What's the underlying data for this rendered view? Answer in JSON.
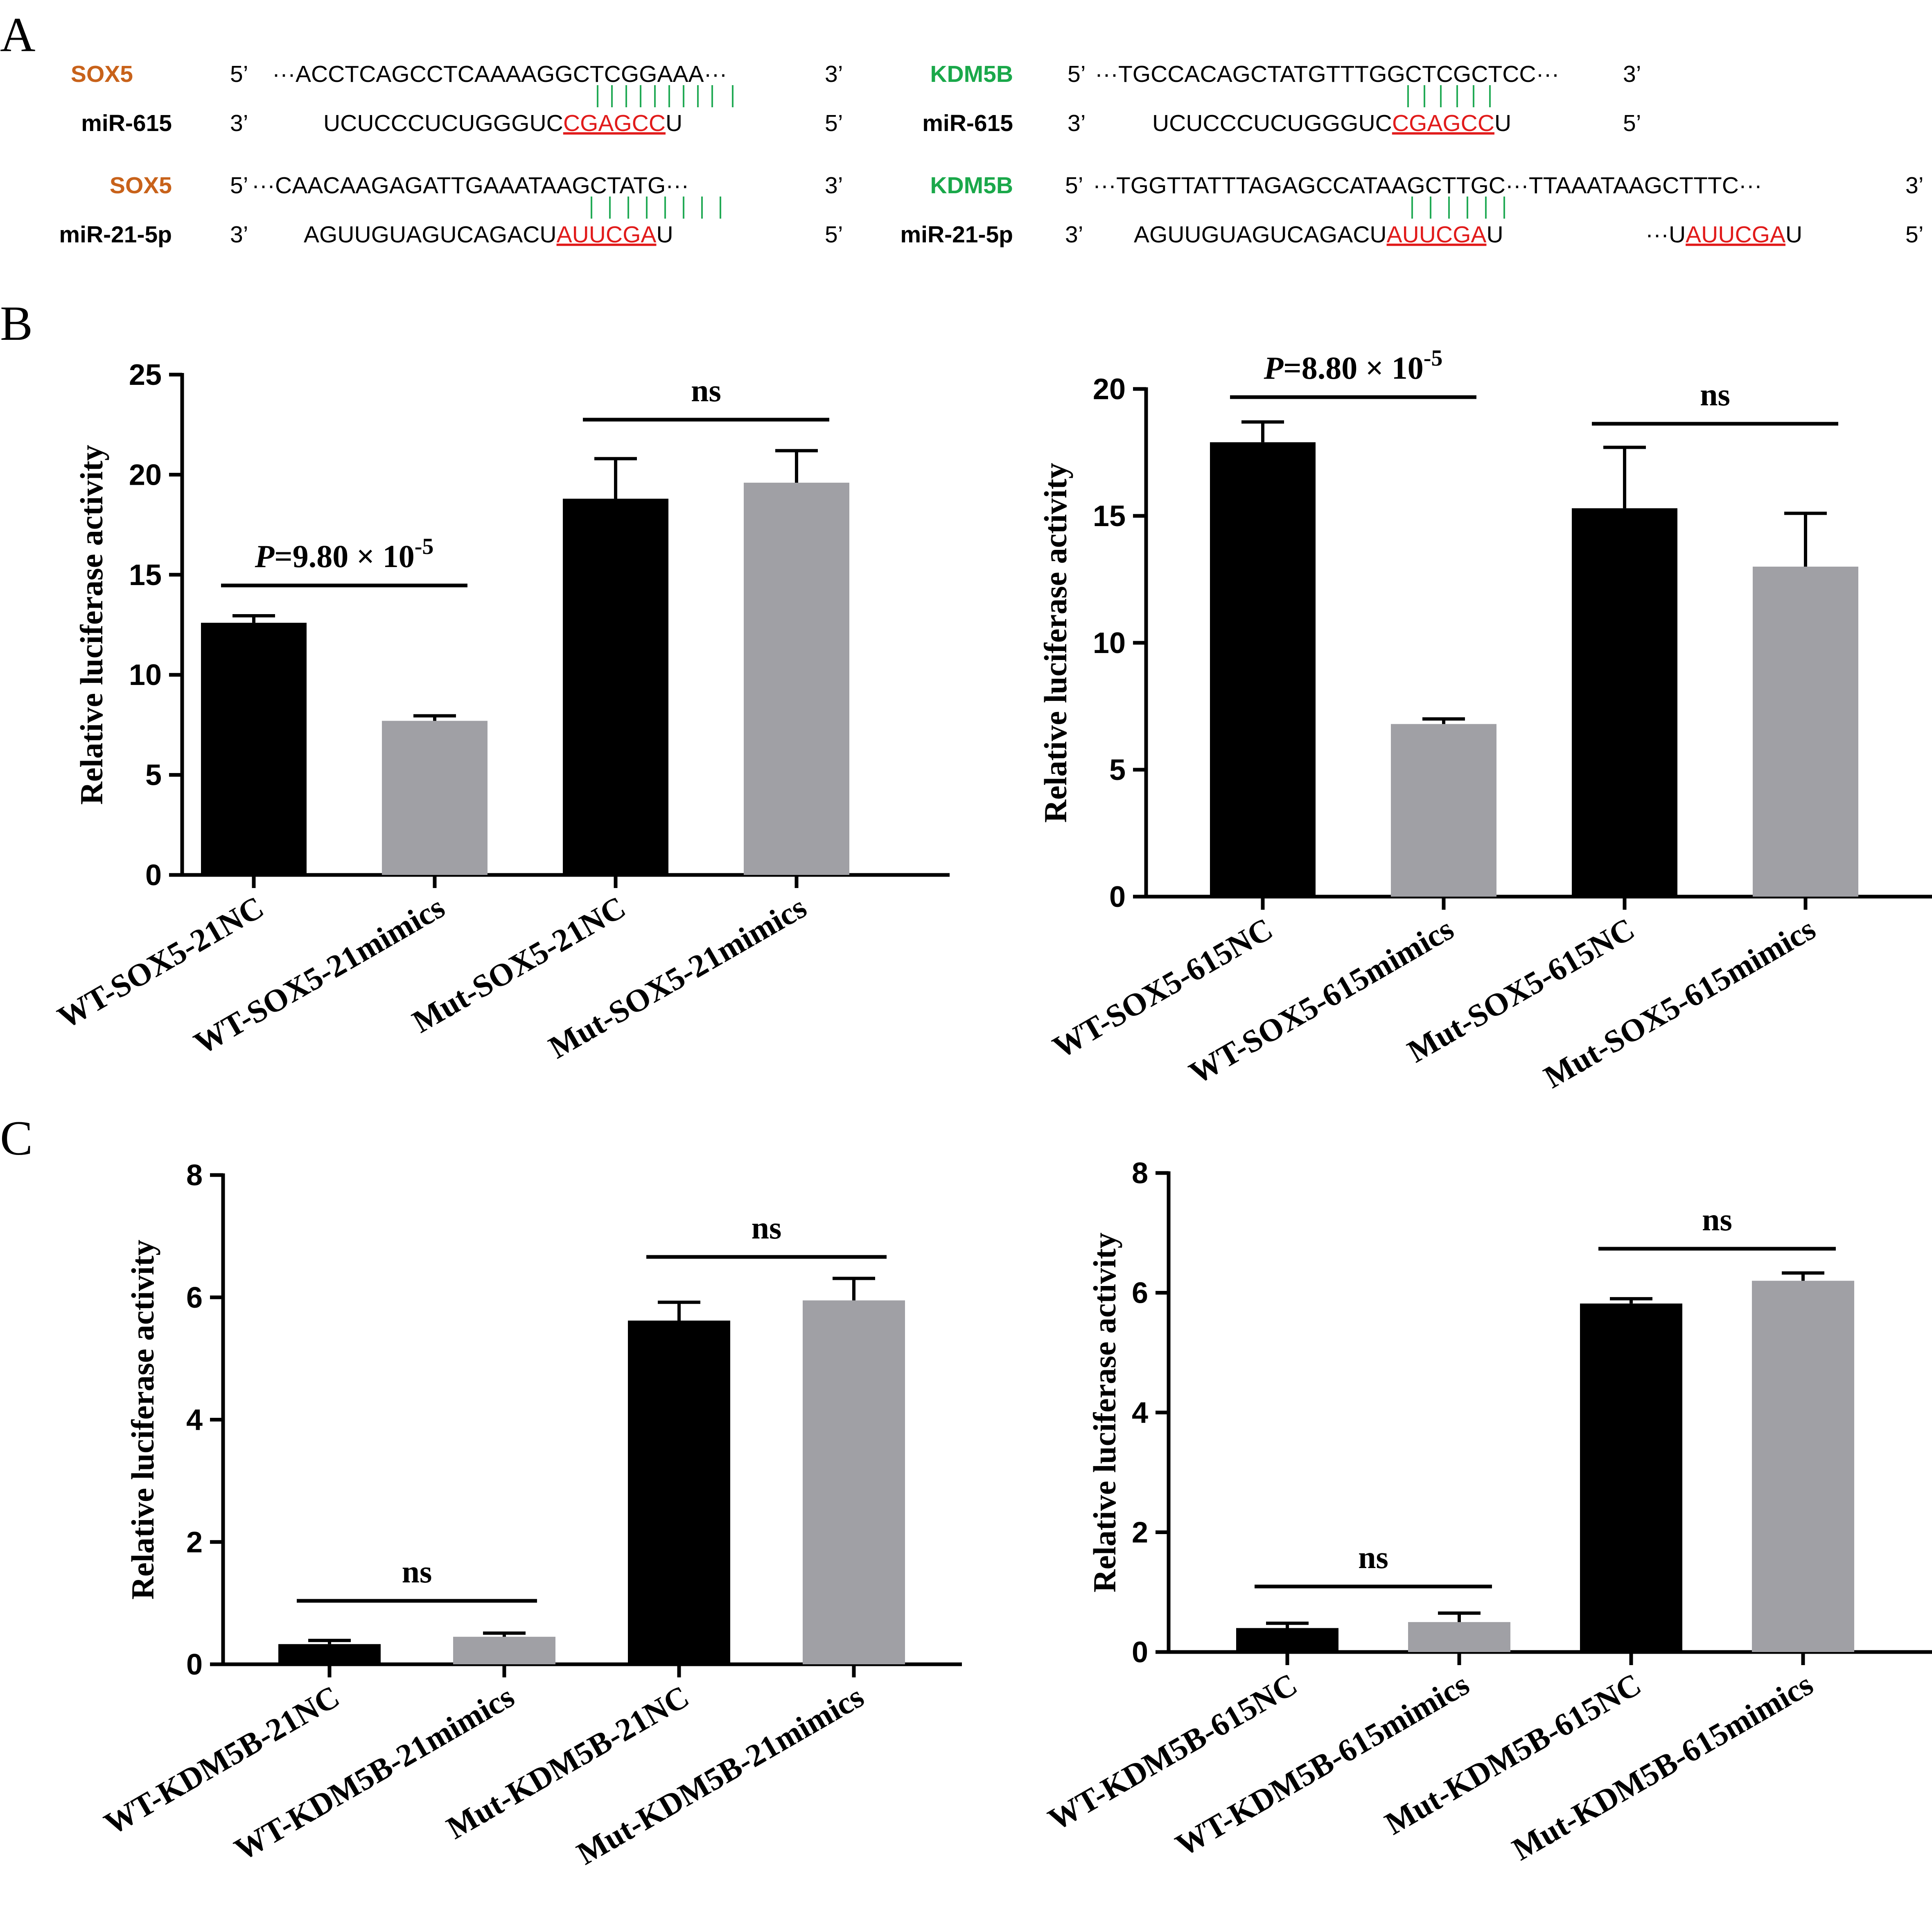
{
  "panels": {
    "a": "A",
    "b": "B",
    "c": "C"
  },
  "colors": {
    "sox5": "#c8621a",
    "kdm5b": "#1aa84a",
    "site": "#e11b1b",
    "pair": "#22aa55",
    "bar_nc": "#000000",
    "bar_mimics": "#a0a0a5"
  },
  "sequences": {
    "prime5": "5’",
    "prime3": "3’",
    "ellipsis": "···",
    "sox5_615": {
      "gene": "SOX5",
      "mirna": "miR-615",
      "target": "ACCTCAGCCTCAAAAGGCTCGGAAA",
      "mir_prefix": "UCUCCCUCUGGGUC",
      "mir_site": "CGAGCC",
      "mir_suffix": "U"
    },
    "kdm5b_615": {
      "gene": "KDM5B",
      "mirna": "miR-615",
      "target": "TGCCACAGCTATGTTTGGCTCGCTCC",
      "mir_prefix": "UCUCCCUCUGGGUC",
      "mir_site": "CGAGCC",
      "mir_suffix": "U"
    },
    "sox5_21": {
      "gene": "SOX5",
      "mirna": "miR-21-5p",
      "target": "CAACAAGAGATTGAAATAAGCTATG",
      "mir_prefix": "AGUUGUAGUCAGACU",
      "mir_site": "AUUCGA",
      "mir_suffix": "U"
    },
    "kdm5b_21": {
      "gene": "KDM5B",
      "mirna": "miR-21-5p",
      "target": "TGGTTATTTAGAGCCATAAGCTTGC",
      "target2": "TTAAATAAGCTTTC",
      "mir_prefix": "AGUUGUAGUCAGACU",
      "mir_site": "AUUCGA",
      "mir_suffix": "U",
      "mir2_prefix": "U",
      "mir2_site": "AUUCGA",
      "mir2_suffix": "U"
    }
  },
  "chart_data": [
    {
      "type": "bar",
      "title": "",
      "ylabel": "Relative luciferase activity",
      "ylim": [
        0,
        25
      ],
      "yticks": [
        "0",
        "5",
        "10",
        "15",
        "20",
        "25"
      ],
      "categories": [
        "WT-SOX5-21NC",
        "WT-SOX5-21mimics",
        "Mut-SOX5-21NC",
        "Mut-SOX5-21mimics"
      ],
      "values": [
        12.6,
        7.7,
        18.8,
        19.6
      ],
      "errors": [
        0.35,
        0.25,
        2.0,
        1.6
      ],
      "annotations": [
        {
          "pair": [
            0,
            1
          ],
          "p_label": "P",
          "text": "=9.80 × 10",
          "sup": "-5"
        },
        {
          "pair": [
            2,
            3
          ],
          "text": "ns"
        }
      ]
    },
    {
      "type": "bar",
      "title": "",
      "ylabel": "Relative luciferase activity",
      "ylim": [
        0,
        20
      ],
      "yticks": [
        "0",
        "5",
        "10",
        "15",
        "20"
      ],
      "categories": [
        "WT-SOX5-615NC",
        "WT-SOX5-615mimics",
        "Mut-SOX5-615NC",
        "Mut-SOX5-615mimics"
      ],
      "values": [
        17.9,
        6.8,
        15.3,
        13.0
      ],
      "errors": [
        0.8,
        0.2,
        2.4,
        2.1
      ],
      "annotations": [
        {
          "pair": [
            0,
            1
          ],
          "p_label": "P",
          "text": "=8.80 × 10",
          "sup": "-5"
        },
        {
          "pair": [
            2,
            3
          ],
          "text": "ns"
        }
      ]
    },
    {
      "type": "bar",
      "title": "",
      "ylabel": "Relative luciferase activity",
      "ylim": [
        0,
        8
      ],
      "yticks": [
        "0",
        "2",
        "4",
        "6",
        "8"
      ],
      "categories": [
        "WT-KDM5B-21NC",
        "WT-KDM5B-21mimics",
        "Mut-KDM5B-21NC",
        "Mut-KDM5B-21mimics"
      ],
      "values": [
        0.33,
        0.45,
        5.62,
        5.95
      ],
      "errors": [
        0.06,
        0.06,
        0.3,
        0.36
      ],
      "annotations": [
        {
          "pair": [
            0,
            1
          ],
          "text": "ns"
        },
        {
          "pair": [
            2,
            3
          ],
          "text": "ns"
        }
      ]
    },
    {
      "type": "bar",
      "title": "",
      "ylabel": "Relative luciferase activity",
      "ylim": [
        0,
        8
      ],
      "yticks": [
        "0",
        "2",
        "4",
        "6",
        "8"
      ],
      "categories": [
        "WT-KDM5B-615NC",
        "WT-KDM5B-615mimics",
        "Mut-KDM5B-615NC",
        "Mut-KDM5B-615mimics"
      ],
      "values": [
        0.4,
        0.5,
        5.82,
        6.2
      ],
      "errors": [
        0.08,
        0.15,
        0.08,
        0.13
      ],
      "annotations": [
        {
          "pair": [
            0,
            1
          ],
          "text": "ns"
        },
        {
          "pair": [
            2,
            3
          ],
          "text": "ns"
        }
      ]
    }
  ]
}
